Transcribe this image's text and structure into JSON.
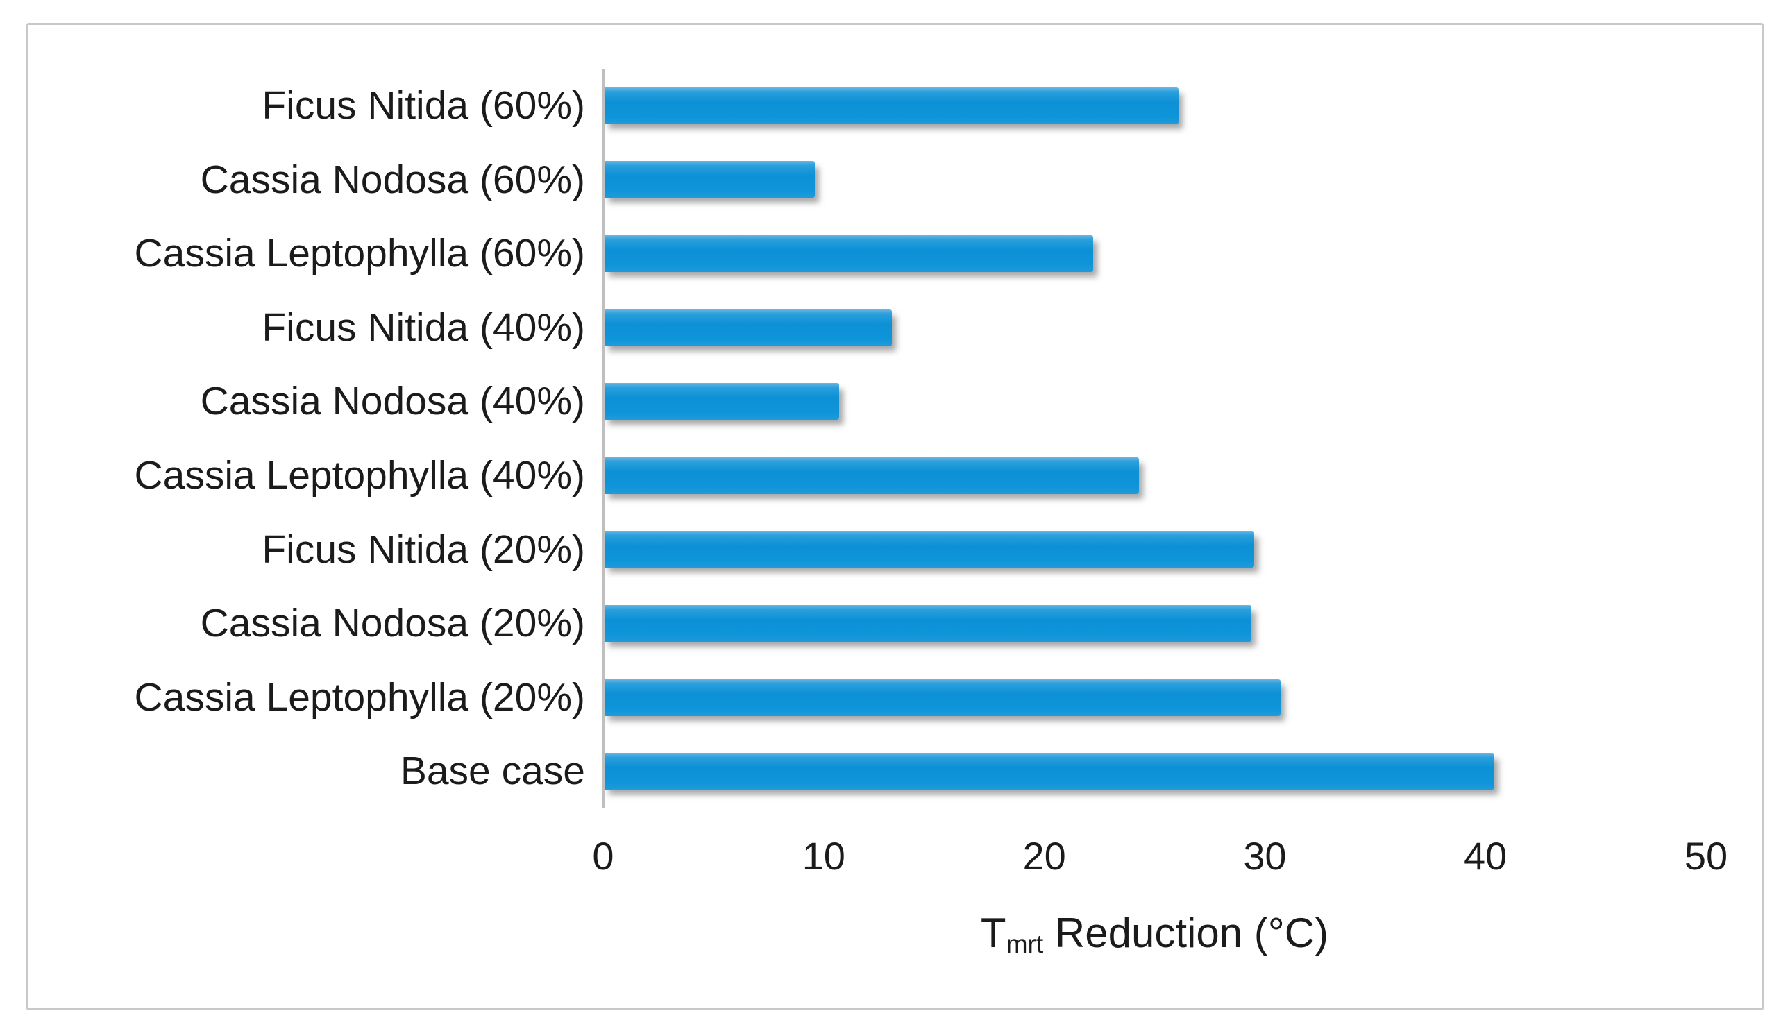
{
  "chart_data": {
    "type": "bar",
    "orientation": "horizontal",
    "title": "",
    "categories": [
      "Ficus Nitida (60%)",
      "Cassia Nodosa (60%)",
      "Cassia Leptophylla (60%)",
      "Ficus Nitida (40%)",
      "Cassia Nodosa (40%)",
      "Cassia Leptophylla (40%)",
      "Ficus Nitida (20%)",
      "Cassia Nodosa (20%)",
      "Cassia Leptophylla (20%)",
      "Base case"
    ],
    "values": [
      26.1,
      9.6,
      22.2,
      13.1,
      10.7,
      24.3,
      29.5,
      29.4,
      30.7,
      40.4
    ],
    "xlabel": {
      "prefix": "T",
      "subscript": "mrt",
      "suffix": " Reduction (°C)"
    },
    "xlim": [
      0,
      50
    ],
    "xticks": [
      "0",
      "10",
      "20",
      "30",
      "40",
      "50"
    ],
    "grid": false,
    "legend": false,
    "bar_color": "#0e94d9",
    "axis_line_color": "#bfbfbf",
    "frame_border_color": "#c9c9c9",
    "text_color": "#1b1b1b"
  }
}
